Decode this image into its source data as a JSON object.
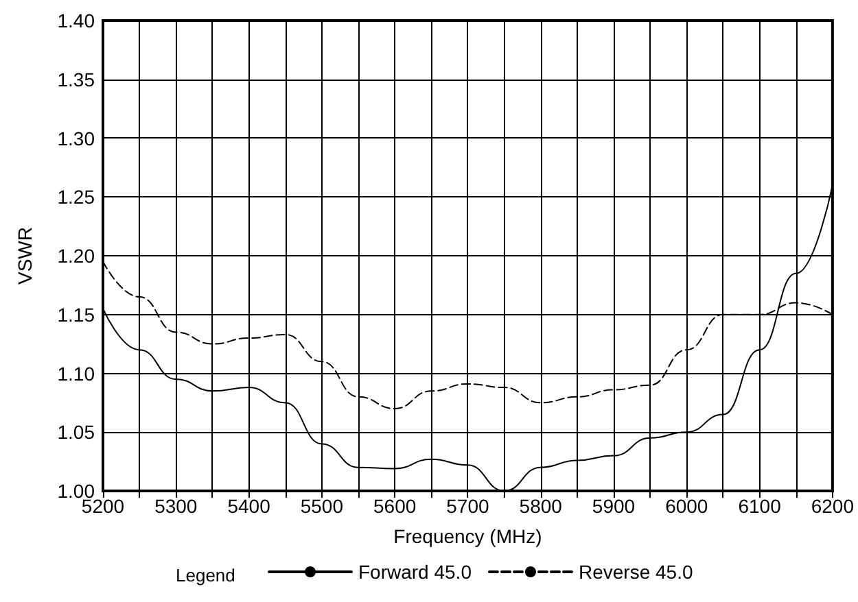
{
  "chart_data": {
    "type": "line",
    "xlabel": "Frequency (MHz)",
    "ylabel": "VSWR",
    "legend_title": "Legend",
    "legend": "bottom",
    "grid": true,
    "marker": "none",
    "xlim": [
      5200,
      6200
    ],
    "xticks": [
      5200,
      {
        "value": 5250,
        "label": null
      },
      5300,
      {
        "value": 5350,
        "label": null
      },
      5400,
      {
        "value": 5450,
        "label": null
      },
      5500,
      {
        "value": 5550,
        "label": null
      },
      5600,
      {
        "value": 5650,
        "label": null
      },
      5700,
      {
        "value": 5750,
        "label": null
      },
      5800,
      {
        "value": 5850,
        "label": null
      },
      5900,
      {
        "value": 5950,
        "label": null
      },
      6000,
      {
        "value": 6050,
        "label": null
      },
      6100,
      {
        "value": 6150,
        "label": null
      },
      6200
    ],
    "ylim": [
      1.0,
      1.4
    ],
    "yticks": [
      {
        "value": 1.0,
        "label": "1.00"
      },
      {
        "value": 1.05,
        "label": "1.05"
      },
      {
        "value": 1.1,
        "label": "1.10"
      },
      {
        "value": 1.15,
        "label": "1.15"
      },
      {
        "value": 1.2,
        "label": "1.20"
      },
      {
        "value": 1.25,
        "label": "1.25"
      },
      {
        "value": 1.3,
        "label": "1.30"
      },
      {
        "value": 1.35,
        "label": "1.35"
      },
      {
        "value": 1.4,
        "label": "1.40"
      }
    ],
    "x": [
      5200,
      5250,
      5300,
      5350,
      5400,
      5450,
      5500,
      5550,
      5600,
      5650,
      5700,
      5750,
      5800,
      5850,
      5900,
      5950,
      6000,
      6050,
      6100,
      6150,
      6200
    ],
    "series": [
      {
        "name": "Forward 45.0",
        "color": "#000000",
        "line_style": "solid",
        "values": [
          1.155,
          1.12,
          1.095,
          1.085,
          1.088,
          1.075,
          1.04,
          1.02,
          1.019,
          1.027,
          1.022,
          1.0,
          1.02,
          1.026,
          1.03,
          1.045,
          1.05,
          1.065,
          1.12,
          1.185,
          1.26
        ]
      },
      {
        "name": "Reverse 45.0",
        "color": "#000000",
        "line_style": "dashed",
        "values": [
          1.195,
          1.165,
          1.135,
          1.125,
          1.13,
          1.133,
          1.11,
          1.08,
          1.07,
          1.085,
          1.091,
          1.088,
          1.075,
          1.08,
          1.086,
          1.09,
          1.12,
          1.15,
          1.15,
          1.16,
          1.15
        ]
      }
    ]
  }
}
